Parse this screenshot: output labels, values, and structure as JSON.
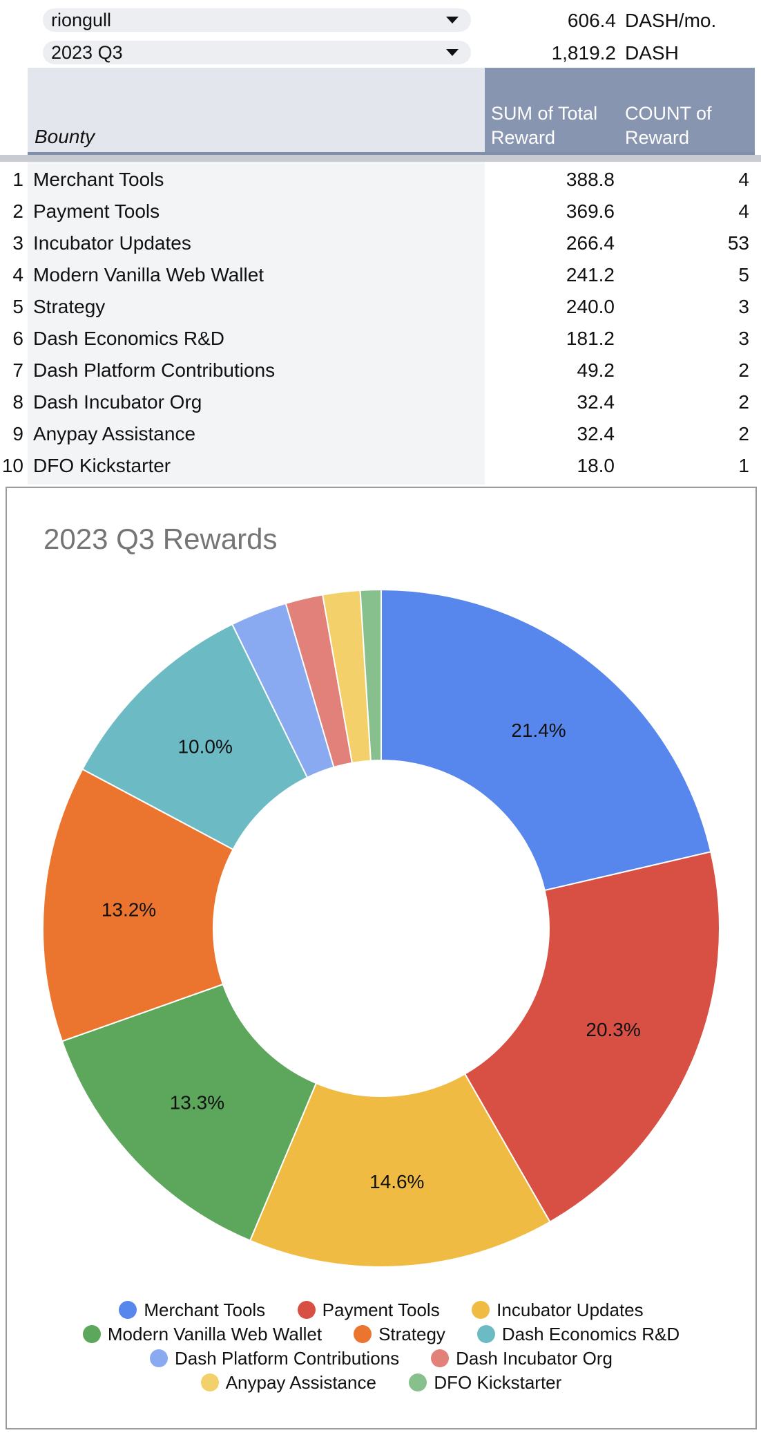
{
  "filters": {
    "user": "riongull",
    "period": "2023 Q3"
  },
  "summary": {
    "monthly_value": "606.4",
    "monthly_unit": "DASH/mo.",
    "total_value": "1,819.2",
    "total_unit": "DASH"
  },
  "pivot": {
    "row_header": "Bounty",
    "col_sum": "SUM of Total Reward",
    "col_count": "COUNT of Reward",
    "rows": [
      {
        "num": "1",
        "name": "Merchant Tools",
        "sum": "388.8",
        "count": "4"
      },
      {
        "num": "2",
        "name": "Payment Tools",
        "sum": "369.6",
        "count": "4"
      },
      {
        "num": "3",
        "name": "Incubator Updates",
        "sum": "266.4",
        "count": "53"
      },
      {
        "num": "4",
        "name": "Modern Vanilla Web Wallet",
        "sum": "241.2",
        "count": "5"
      },
      {
        "num": "5",
        "name": "Strategy",
        "sum": "240.0",
        "count": "3"
      },
      {
        "num": "6",
        "name": "Dash Economics R&D",
        "sum": "181.2",
        "count": "3"
      },
      {
        "num": "7",
        "name": "Dash Platform Contributions",
        "sum": "49.2",
        "count": "2"
      },
      {
        "num": "8",
        "name": "Dash Incubator Org",
        "sum": "32.4",
        "count": "2"
      },
      {
        "num": "9",
        "name": "Anypay Assistance",
        "sum": "32.4",
        "count": "2"
      },
      {
        "num": "10",
        "name": "DFO Kickstarter",
        "sum": "18.0",
        "count": "1"
      }
    ]
  },
  "chart_data": {
    "type": "pie",
    "donut": true,
    "title": "2023 Q3 Rewards",
    "legend_position": "bottom",
    "categories": [
      "Merchant Tools",
      "Payment Tools",
      "Incubator Updates",
      "Modern Vanilla Web Wallet",
      "Strategy",
      "Dash Economics R&D",
      "Dash Platform Contributions",
      "Dash Incubator Org",
      "Anypay Assistance",
      "DFO Kickstarter"
    ],
    "values": [
      388.8,
      369.6,
      266.4,
      241.2,
      240.0,
      181.2,
      49.2,
      32.4,
      32.4,
      18.0
    ],
    "percent_labels": [
      "21.4%",
      "20.3%",
      "14.6%",
      "13.3%",
      "13.2%",
      "10.0%",
      "",
      "",
      "",
      ""
    ],
    "colors": [
      "#5786ec",
      "#d85043",
      "#f0bb42",
      "#5ca75b",
      "#eb752e",
      "#6cbbc4",
      "#89aaf1",
      "#e1817a",
      "#f4d06a",
      "#87c08d"
    ]
  }
}
